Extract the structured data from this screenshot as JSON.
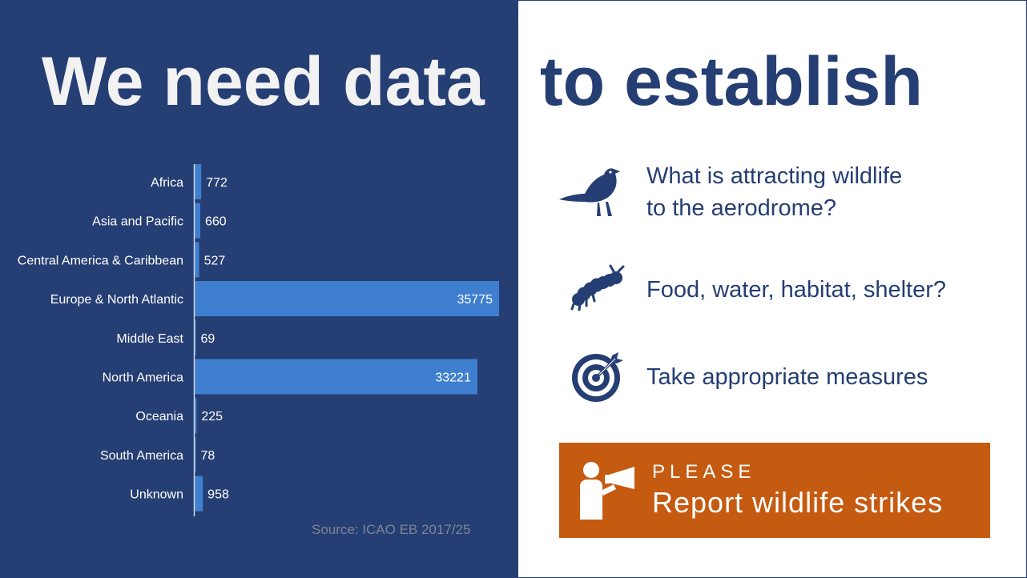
{
  "headline": {
    "left": "We need data",
    "right": "to establish"
  },
  "chart_data": {
    "type": "bar",
    "orientation": "horizontal",
    "categories": [
      "Africa",
      "Asia and Pacific",
      "Central America & Caribbean",
      "Europe & North Atlantic",
      "Middle East",
      "North America",
      "Oceania",
      "South America",
      "Unknown"
    ],
    "values": [
      772,
      660,
      527,
      35775,
      69,
      33221,
      225,
      78,
      958
    ],
    "xlim": [
      0,
      36000
    ],
    "grid": false,
    "legend": "none",
    "bar_color": "#3f7fcf",
    "source": "Source: ICAO EB 2017/25"
  },
  "items": [
    {
      "icon": "bird-icon",
      "line1": "What is attracting wildlife",
      "line2": "to the aerodrome?"
    },
    {
      "icon": "caterpillar-icon",
      "line1": "Food, water, habitat, shelter?"
    },
    {
      "icon": "target-icon",
      "line1": "Take appropriate measures"
    }
  ],
  "cta": {
    "icon": "megaphone-person-icon",
    "please": "PLEASE",
    "report": "Report wildlife strikes",
    "color": "#c55a11"
  },
  "colors": {
    "navy": "#253e73",
    "bar": "#3f7fcf"
  }
}
